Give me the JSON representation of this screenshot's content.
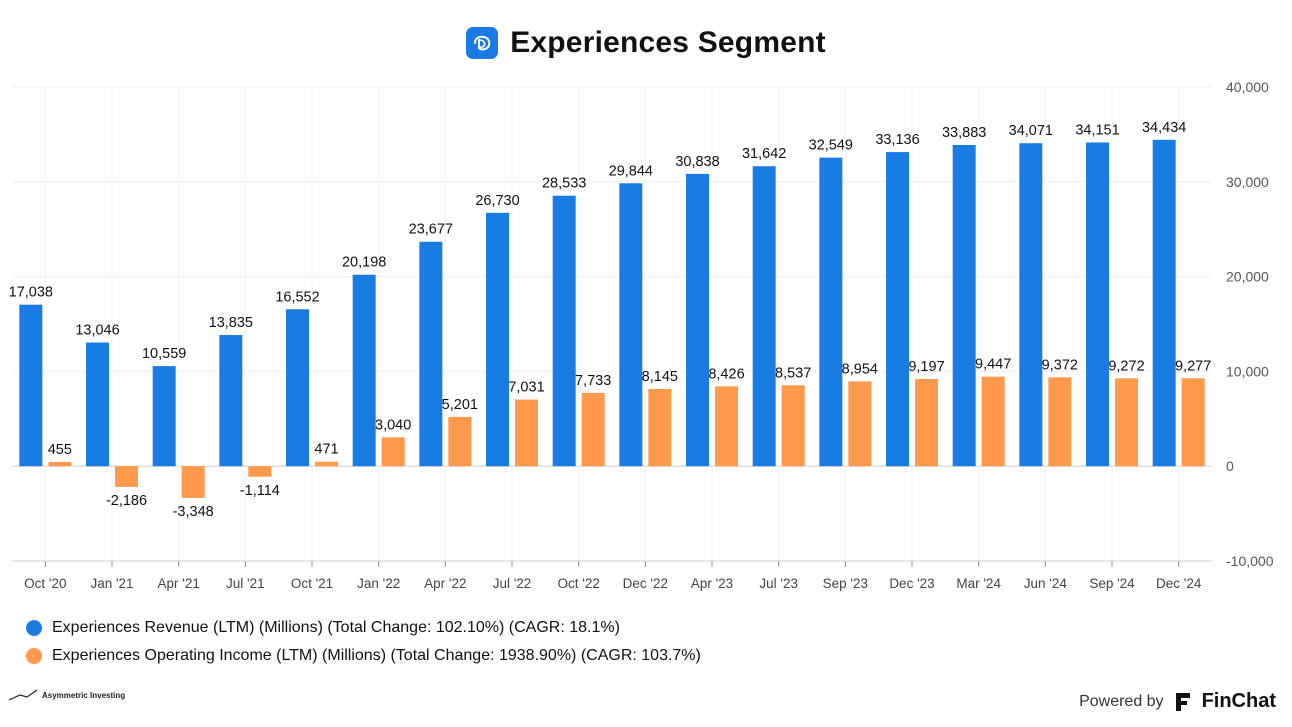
{
  "header": {
    "title": "Experiences Segment",
    "logo_icon": "disney-logo-icon"
  },
  "chart_data": {
    "type": "bar",
    "title": "Experiences Segment",
    "categories": [
      "Oct '20",
      "Jan '21",
      "Apr '21",
      "Jul '21",
      "Oct '21",
      "Jan '22",
      "Apr '22",
      "Jul '22",
      "Oct '22",
      "Dec '22",
      "Apr '23",
      "Jul '23",
      "Sep '23",
      "Dec '23",
      "Mar '24",
      "Jun '24",
      "Sep '24",
      "Dec '24"
    ],
    "series": [
      {
        "name": "Experiences Revenue (LTM) (Millions) (Total Change: 102.10%) (CAGR: 18.1%)",
        "color": "#1a7ce3",
        "values": [
          17038,
          13046,
          10559,
          13835,
          16552,
          20198,
          23677,
          26730,
          28533,
          29844,
          30838,
          31642,
          32549,
          33136,
          33883,
          34071,
          34151,
          34434
        ],
        "labels": [
          "17,038",
          "13,046",
          "10,559",
          "13,835",
          "16,552",
          "20,198",
          "23,677",
          "26,730",
          "28,533",
          "29,844",
          "30,838",
          "31,642",
          "32,549",
          "33,136",
          "33,883",
          "34,071",
          "34,151",
          "34,434"
        ]
      },
      {
        "name": "Experiences Operating Income (LTM) (Millions) (Total Change: 1938.90%) (CAGR: 103.7%)",
        "color": "#ff9a4d",
        "values": [
          455,
          -2186,
          -3348,
          -1114,
          471,
          3040,
          5201,
          7031,
          7733,
          8145,
          8426,
          8537,
          8954,
          9197,
          9447,
          9372,
          9272,
          9277
        ],
        "labels": [
          "455",
          "-2,186",
          "-3,348",
          "-1,114",
          "471",
          "3,040",
          "5,201",
          "7,031",
          "7,733",
          "8,145",
          "8,426",
          "8,537",
          "8,954",
          "9,197",
          "9,447",
          "9,372",
          "9,272",
          "9,277"
        ]
      }
    ],
    "ylim": [
      -10000,
      40000
    ],
    "yticks": [
      -10000,
      0,
      10000,
      20000,
      30000,
      40000
    ],
    "ytick_labels": [
      "-10,000",
      "0",
      "10,000",
      "20,000",
      "30,000",
      "40,000"
    ],
    "grid": true,
    "xlabel": "",
    "ylabel": "",
    "legend_position": "bottom-left"
  },
  "footer": {
    "author": "Asymmetric Investing",
    "powered_by": "Powered by",
    "brand": "FinChat"
  }
}
